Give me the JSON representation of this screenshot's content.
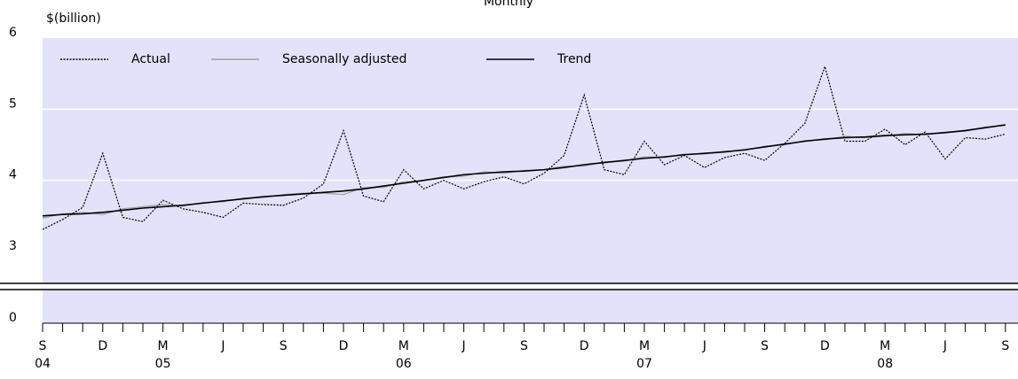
{
  "chart_data": {
    "type": "line",
    "title": "Monthly",
    "y_label": "$(billion)",
    "categories": [
      "S",
      null,
      null,
      "D",
      null,
      null,
      "M",
      null,
      null,
      "J",
      null,
      null,
      "S",
      null,
      null,
      "D",
      null,
      null,
      "M",
      null,
      null,
      "J",
      null,
      null,
      "S",
      null,
      null,
      "D",
      null,
      null,
      "M",
      null,
      null,
      "J",
      null,
      null,
      "S",
      null,
      null,
      "D",
      null,
      null,
      "M",
      null,
      null,
      "J",
      null,
      null,
      "S"
    ],
    "year_labels": [
      "04",
      "05",
      "06",
      "07",
      "08"
    ],
    "series": [
      {
        "name": "Actual",
        "color": "#000000",
        "dash": true,
        "values": [
          3.31,
          3.45,
          3.62,
          4.38,
          3.48,
          3.42,
          3.72,
          3.6,
          3.55,
          3.48,
          3.68,
          3.66,
          3.65,
          3.75,
          3.95,
          4.7,
          3.78,
          3.7,
          4.15,
          3.88,
          4.0,
          3.88,
          3.98,
          4.05,
          3.95,
          4.1,
          4.35,
          5.2,
          4.15,
          4.08,
          4.55,
          4.22,
          4.35,
          4.18,
          4.32,
          4.38,
          4.28,
          4.52,
          4.8,
          5.6,
          4.55,
          4.55,
          4.72,
          4.5,
          4.68,
          4.3,
          4.6,
          4.58,
          4.65
        ]
      },
      {
        "name": "Seasonally adjusted",
        "color": "#a0a0a0",
        "dash": false,
        "values": [
          3.47,
          3.53,
          3.55,
          3.52,
          3.6,
          3.63,
          3.66,
          3.64,
          3.69,
          3.7,
          3.75,
          3.76,
          3.8,
          3.82,
          3.82,
          3.8,
          3.9,
          3.9,
          3.98,
          4.0,
          4.05,
          4.06,
          4.12,
          4.1,
          4.14,
          4.15,
          4.2,
          4.2,
          4.26,
          4.27,
          4.33,
          4.32,
          4.37,
          4.37,
          4.41,
          4.42,
          4.48,
          4.5,
          4.56,
          4.57,
          4.62,
          4.6,
          4.62,
          4.66,
          4.64,
          4.68,
          4.69,
          4.75,
          4.77
        ]
      },
      {
        "name": "Trend",
        "color": "#000000",
        "dash": false,
        "values": [
          3.5,
          3.52,
          3.53,
          3.55,
          3.58,
          3.61,
          3.63,
          3.65,
          3.68,
          3.71,
          3.74,
          3.77,
          3.79,
          3.81,
          3.83,
          3.85,
          3.88,
          3.92,
          3.96,
          4.0,
          4.04,
          4.08,
          4.1,
          4.12,
          4.13,
          4.15,
          4.18,
          4.22,
          4.25,
          4.28,
          4.31,
          4.33,
          4.36,
          4.38,
          4.4,
          4.43,
          4.47,
          4.51,
          4.55,
          4.58,
          4.6,
          4.61,
          4.63,
          4.64,
          4.65,
          4.67,
          4.7,
          4.74,
          4.78
        ]
      }
    ],
    "ylim": [
      0,
      6
    ],
    "axis_break": [
      0,
      3
    ],
    "yticks": [
      0,
      3,
      4,
      5,
      6
    ],
    "grid": true,
    "background": "#e2e2fa",
    "legend": "top"
  }
}
